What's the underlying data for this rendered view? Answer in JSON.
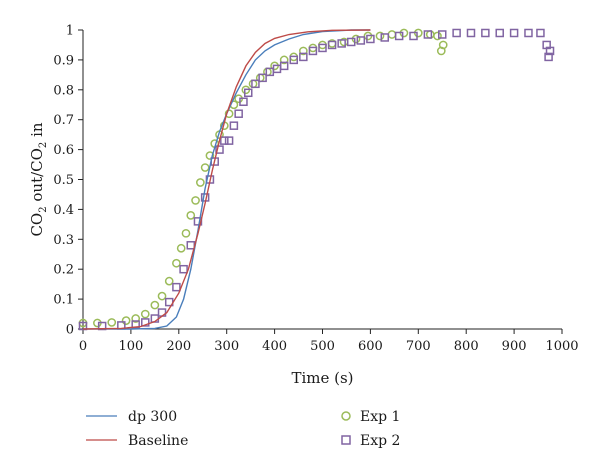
{
  "chart_data": {
    "type": "scatter",
    "title": "",
    "xlabel": "Time (s)",
    "ylabel": {
      "p1": "CO",
      "s1": "2",
      "p2": " out/CO",
      "s2": "2",
      "p3": " in"
    },
    "xlim": [
      0,
      1000
    ],
    "ylim": [
      0,
      1
    ],
    "xticks": [
      "0",
      "100",
      "200",
      "300",
      "400",
      "500",
      "600",
      "700",
      "800",
      "900",
      "1000"
    ],
    "yticks": [
      "0",
      "0.1",
      "0.2",
      "0.3",
      "0.4",
      "0.5",
      "0.6",
      "0.7",
      "0.8",
      "0.9",
      "1"
    ],
    "grid": false,
    "legend_position": "bottom",
    "series": [
      {
        "name": "dp 300",
        "kind": "line",
        "color": "#4a7ebb",
        "points": [
          [
            0,
            0.0
          ],
          [
            100,
            0.0
          ],
          [
            150,
            0.002
          ],
          [
            175,
            0.01
          ],
          [
            195,
            0.04
          ],
          [
            210,
            0.1
          ],
          [
            225,
            0.2
          ],
          [
            240,
            0.33
          ],
          [
            255,
            0.47
          ],
          [
            270,
            0.58
          ],
          [
            285,
            0.66
          ],
          [
            300,
            0.72
          ],
          [
            320,
            0.79
          ],
          [
            340,
            0.85
          ],
          [
            360,
            0.9
          ],
          [
            380,
            0.93
          ],
          [
            400,
            0.95
          ],
          [
            430,
            0.97
          ],
          [
            460,
            0.985
          ],
          [
            500,
            0.995
          ],
          [
            560,
            1.0
          ],
          [
            600,
            1.0
          ]
        ]
      },
      {
        "name": "Baseline",
        "kind": "line",
        "color": "#be4b48",
        "points": [
          [
            0,
            0.0
          ],
          [
            80,
            0.002
          ],
          [
            120,
            0.008
          ],
          [
            150,
            0.025
          ],
          [
            175,
            0.055
          ],
          [
            200,
            0.12
          ],
          [
            220,
            0.2
          ],
          [
            240,
            0.32
          ],
          [
            255,
            0.42
          ],
          [
            270,
            0.53
          ],
          [
            285,
            0.63
          ],
          [
            300,
            0.72
          ],
          [
            320,
            0.81
          ],
          [
            340,
            0.88
          ],
          [
            360,
            0.925
          ],
          [
            380,
            0.955
          ],
          [
            400,
            0.972
          ],
          [
            430,
            0.985
          ],
          [
            470,
            0.994
          ],
          [
            520,
            0.999
          ],
          [
            600,
            1.0
          ]
        ]
      },
      {
        "name": "Exp 1",
        "kind": "marker-circle",
        "color": "#9bbb59",
        "points": [
          [
            0,
            0.02
          ],
          [
            30,
            0.02
          ],
          [
            60,
            0.022
          ],
          [
            90,
            0.028
          ],
          [
            110,
            0.035
          ],
          [
            130,
            0.05
          ],
          [
            150,
            0.08
          ],
          [
            165,
            0.11
          ],
          [
            180,
            0.16
          ],
          [
            195,
            0.22
          ],
          [
            205,
            0.27
          ],
          [
            215,
            0.32
          ],
          [
            225,
            0.38
          ],
          [
            235,
            0.43
          ],
          [
            245,
            0.49
          ],
          [
            255,
            0.54
          ],
          [
            265,
            0.58
          ],
          [
            275,
            0.62
          ],
          [
            285,
            0.65
          ],
          [
            295,
            0.68
          ],
          [
            305,
            0.72
          ],
          [
            315,
            0.75
          ],
          [
            325,
            0.77
          ],
          [
            340,
            0.8
          ],
          [
            355,
            0.82
          ],
          [
            370,
            0.84
          ],
          [
            385,
            0.86
          ],
          [
            400,
            0.88
          ],
          [
            420,
            0.9
          ],
          [
            440,
            0.91
          ],
          [
            460,
            0.93
          ],
          [
            480,
            0.94
          ],
          [
            500,
            0.95
          ],
          [
            520,
            0.955
          ],
          [
            545,
            0.96
          ],
          [
            570,
            0.97
          ],
          [
            595,
            0.98
          ],
          [
            620,
            0.98
          ],
          [
            645,
            0.985
          ],
          [
            670,
            0.99
          ],
          [
            700,
            0.99
          ],
          [
            725,
            0.985
          ],
          [
            740,
            0.98
          ],
          [
            748,
            0.93
          ],
          [
            752,
            0.95
          ]
        ]
      },
      {
        "name": "Exp 2",
        "kind": "marker-square",
        "color": "#8064a2",
        "points": [
          [
            0,
            0.01
          ],
          [
            40,
            0.01
          ],
          [
            80,
            0.012
          ],
          [
            110,
            0.015
          ],
          [
            130,
            0.022
          ],
          [
            150,
            0.035
          ],
          [
            165,
            0.055
          ],
          [
            180,
            0.09
          ],
          [
            195,
            0.14
          ],
          [
            210,
            0.2
          ],
          [
            225,
            0.28
          ],
          [
            240,
            0.36
          ],
          [
            255,
            0.44
          ],
          [
            265,
            0.5
          ],
          [
            275,
            0.56
          ],
          [
            285,
            0.6
          ],
          [
            295,
            0.63
          ],
          [
            305,
            0.63
          ],
          [
            315,
            0.68
          ],
          [
            325,
            0.72
          ],
          [
            335,
            0.76
          ],
          [
            345,
            0.79
          ],
          [
            360,
            0.82
          ],
          [
            375,
            0.84
          ],
          [
            390,
            0.86
          ],
          [
            405,
            0.87
          ],
          [
            420,
            0.88
          ],
          [
            440,
            0.9
          ],
          [
            460,
            0.91
          ],
          [
            480,
            0.93
          ],
          [
            500,
            0.94
          ],
          [
            520,
            0.95
          ],
          [
            540,
            0.955
          ],
          [
            560,
            0.96
          ],
          [
            580,
            0.965
          ],
          [
            600,
            0.97
          ],
          [
            630,
            0.975
          ],
          [
            660,
            0.98
          ],
          [
            690,
            0.98
          ],
          [
            720,
            0.985
          ],
          [
            750,
            0.985
          ],
          [
            780,
            0.99
          ],
          [
            810,
            0.99
          ],
          [
            840,
            0.99
          ],
          [
            870,
            0.99
          ],
          [
            900,
            0.99
          ],
          [
            930,
            0.99
          ],
          [
            955,
            0.99
          ],
          [
            968,
            0.95
          ],
          [
            972,
            0.91
          ],
          [
            975,
            0.93
          ]
        ]
      }
    ]
  }
}
